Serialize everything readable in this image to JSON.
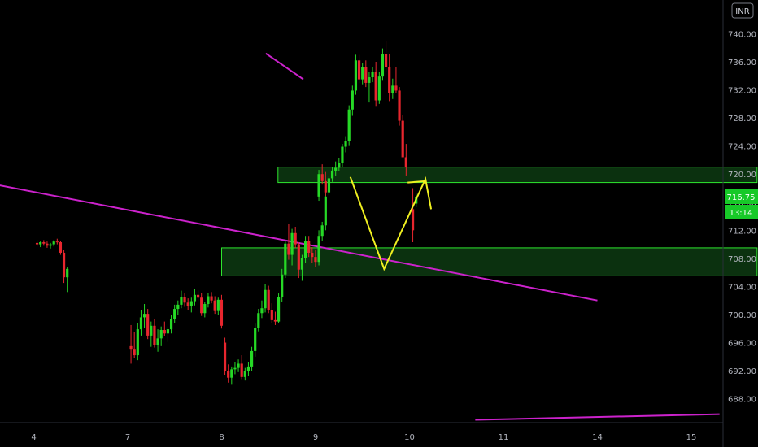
{
  "currency": "INR",
  "last_price_label": "716.75",
  "countdown_label": "13:14",
  "colors": {
    "background": "#000000",
    "up": "#26d926",
    "down": "#e8262e",
    "trendline": "#cc22cc",
    "projection": "#f0f020",
    "zone_fill": "#0d3a12",
    "zone_border": "#2ee62e",
    "price_tag": "#17c928"
  },
  "chart_data": {
    "type": "candlestick",
    "y_axis": {
      "ticks": [
        688,
        692,
        696,
        700,
        704,
        708,
        712,
        716,
        720,
        724,
        728,
        732,
        736,
        740
      ],
      "tick_labels": [
        "688.00",
        "692.00",
        "696.00",
        "700.00",
        "704.00",
        "708.00",
        "712.00",
        "716.00",
        "720.00",
        "724.00",
        "728.00",
        "732.00",
        "736.00",
        "740.00"
      ],
      "range": [
        684.6,
        744.8
      ]
    },
    "x_axis": {
      "tick_labels": [
        "4",
        "7",
        "8",
        "9",
        "10",
        "11",
        "14",
        "15"
      ]
    },
    "zones": [
      {
        "from_session": 2.6,
        "to_session": 7.7,
        "low": 718.8,
        "high": 721.0
      },
      {
        "from_session": 2.0,
        "to_session": 7.7,
        "low": 705.5,
        "high": 709.5
      }
    ],
    "trendlines": [
      {
        "points": [
          [
            -0.4,
            718.5
          ],
          [
            6.0,
            702.0
          ]
        ]
      },
      {
        "points": [
          [
            4.7,
            685.0
          ],
          [
            7.3,
            685.8
          ]
        ]
      },
      {
        "points": [
          [
            2.47,
            737.2
          ],
          [
            2.87,
            733.5
          ]
        ]
      }
    ],
    "projection": [
      [
        3.37,
        719.6
      ],
      [
        3.73,
        706.5
      ],
      [
        4.17,
        719.3
      ],
      [
        4.23,
        715.0
      ]
    ],
    "projection_tail": [
      [
        3.98,
        718.8
      ],
      [
        4.17,
        719.0
      ]
    ],
    "sessions": [
      {
        "label": "4",
        "candles": [
          [
            710.2,
            710.6,
            709.7,
            710.0
          ],
          [
            710.0,
            710.4,
            709.6,
            710.3
          ],
          [
            710.3,
            710.6,
            709.8,
            710.1
          ],
          [
            710.1,
            710.4,
            709.5,
            709.8
          ],
          [
            709.8,
            710.2,
            709.4,
            710.0
          ],
          [
            710.0,
            710.6,
            709.7,
            710.4
          ],
          [
            710.4,
            710.8,
            710.0,
            710.3
          ],
          [
            710.3,
            710.5,
            708.5,
            708.8
          ],
          [
            708.8,
            709.2,
            704.5,
            705.3
          ],
          [
            705.3,
            706.8,
            703.2,
            706.5
          ]
        ]
      },
      {
        "label": "7",
        "candles": [
          [
            695.5,
            698.5,
            693.0,
            695.0
          ],
          [
            695.0,
            697.5,
            693.8,
            694.2
          ],
          [
            694.2,
            698.8,
            693.5,
            697.9
          ],
          [
            697.9,
            700.6,
            697.0,
            699.6
          ],
          [
            699.6,
            701.5,
            698.1,
            700.1
          ],
          [
            700.1,
            700.8,
            696.5,
            697.0
          ],
          [
            697.0,
            699.0,
            695.4,
            698.4
          ],
          [
            698.4,
            699.3,
            695.3,
            695.6
          ],
          [
            695.6,
            697.9,
            694.7,
            696.6
          ],
          [
            696.6,
            698.3,
            695.5,
            697.8
          ],
          [
            697.8,
            699.0,
            696.9,
            697.3
          ],
          [
            697.3,
            698.3,
            696.1,
            697.9
          ],
          [
            697.9,
            699.9,
            697.3,
            699.4
          ],
          [
            699.4,
            701.4,
            698.8,
            700.8
          ],
          [
            700.8,
            702.0,
            699.9,
            701.4
          ],
          [
            701.4,
            703.4,
            700.9,
            702.5
          ],
          [
            702.5,
            703.0,
            701.1,
            701.7
          ],
          [
            701.7,
            702.3,
            700.6,
            701.2
          ],
          [
            701.2,
            702.4,
            700.3,
            701.9
          ],
          [
            701.9,
            703.6,
            701.3,
            702.8
          ],
          [
            702.8,
            703.4,
            701.9,
            702.4
          ],
          [
            702.4,
            703.1,
            699.8,
            700.2
          ],
          [
            700.2,
            701.8,
            699.6,
            701.5
          ],
          [
            701.5,
            703.1,
            701.0,
            702.6
          ],
          [
            702.6,
            703.2,
            701.6,
            702.0
          ],
          [
            702.0,
            702.6,
            700.1,
            700.5
          ],
          [
            700.5,
            702.4,
            700.0,
            702.1
          ],
          [
            702.1,
            702.8,
            698.0,
            698.4
          ]
        ]
      },
      {
        "label": "8",
        "candles": [
          [
            696.0,
            696.7,
            691.4,
            692.0
          ],
          [
            692.0,
            692.9,
            690.3,
            691.0
          ],
          [
            691.0,
            692.6,
            690.0,
            692.2
          ],
          [
            692.2,
            693.2,
            691.5,
            692.4
          ],
          [
            692.4,
            693.6,
            691.8,
            693.0
          ],
          [
            693.0,
            694.2,
            690.8,
            691.1
          ],
          [
            691.1,
            692.4,
            690.6,
            691.9
          ],
          [
            691.9,
            693.2,
            691.2,
            692.6
          ],
          [
            692.6,
            695.4,
            692.0,
            694.8
          ],
          [
            694.8,
            698.7,
            694.0,
            698.1
          ],
          [
            698.1,
            700.8,
            697.6,
            700.2
          ],
          [
            700.2,
            702.0,
            699.5,
            700.9
          ],
          [
            700.9,
            704.3,
            700.3,
            703.5
          ],
          [
            703.5,
            704.1,
            700.2,
            700.6
          ],
          [
            700.6,
            701.6,
            698.8,
            699.2
          ],
          [
            699.2,
            700.4,
            698.5,
            699.0
          ],
          [
            699.0,
            703.0,
            698.8,
            702.5
          ],
          [
            702.5,
            706.5,
            701.8,
            705.7
          ],
          [
            705.7,
            710.6,
            705.2,
            710.1
          ],
          [
            710.1,
            712.9,
            707.8,
            708.5
          ],
          [
            708.5,
            712.2,
            707.0,
            711.6
          ],
          [
            711.6,
            712.5,
            709.5,
            710.0
          ],
          [
            710.0,
            710.3,
            705.2,
            706.4
          ],
          [
            706.4,
            708.5,
            704.8,
            708.1
          ],
          [
            708.1,
            711.2,
            707.3,
            710.5
          ],
          [
            710.5,
            711.2,
            708.2,
            708.8
          ],
          [
            708.8,
            709.6,
            707.4,
            708.2
          ],
          [
            708.2,
            709.2,
            706.8,
            707.5
          ],
          [
            707.5,
            712.0,
            707.0,
            711.2
          ],
          [
            711.2,
            713.2,
            710.5,
            712.7
          ],
          [
            712.7,
            717.4,
            712.0,
            716.8
          ]
        ]
      },
      {
        "label": "9",
        "candles": [
          [
            716.8,
            720.6,
            716.2,
            720.0
          ],
          [
            720.0,
            721.4,
            718.5,
            719.0
          ],
          [
            719.0,
            720.3,
            716.9,
            717.4
          ],
          [
            717.4,
            719.8,
            717.0,
            719.4
          ],
          [
            719.4,
            721.0,
            718.9,
            720.5
          ],
          [
            720.5,
            721.8,
            719.8,
            720.9
          ],
          [
            720.9,
            722.3,
            720.4,
            721.6
          ],
          [
            721.6,
            724.3,
            721.0,
            723.9
          ],
          [
            723.9,
            725.4,
            723.1,
            724.7
          ],
          [
            724.7,
            729.8,
            724.0,
            729.2
          ],
          [
            729.2,
            732.6,
            728.3,
            731.9
          ],
          [
            731.9,
            737.0,
            731.3,
            736.2
          ],
          [
            736.2,
            737.0,
            733.0,
            733.5
          ],
          [
            733.5,
            735.8,
            732.8,
            735.3
          ],
          [
            735.3,
            736.2,
            732.4,
            733.0
          ],
          [
            733.0,
            734.5,
            730.2,
            733.8
          ],
          [
            733.8,
            735.2,
            733.1,
            734.5
          ],
          [
            734.5,
            736.0,
            729.6,
            730.5
          ],
          [
            730.5,
            734.6,
            730.0,
            733.9
          ],
          [
            733.9,
            737.9,
            733.3,
            737.1
          ],
          [
            737.1,
            739.0,
            734.6,
            735.2
          ],
          [
            735.2,
            737.1,
            730.4,
            731.6
          ],
          [
            731.6,
            733.6,
            730.7,
            732.6
          ],
          [
            732.6,
            735.3,
            731.6,
            731.9
          ],
          [
            731.9,
            732.4,
            726.9,
            727.6
          ],
          [
            727.6,
            728.4,
            722.4,
            722.4
          ],
          [
            722.4,
            724.3,
            719.8,
            721.0
          ]
        ]
      },
      {
        "label": "10",
        "candles": [
          [
            715.0,
            718.0,
            710.3,
            712.0
          ],
          [
            715.8,
            717.2,
            715.3,
            716.75
          ]
        ]
      }
    ]
  }
}
